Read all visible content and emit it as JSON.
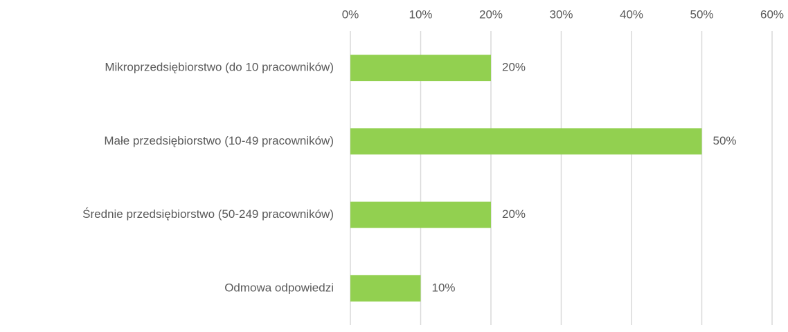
{
  "chart_data": {
    "type": "bar",
    "orientation": "horizontal",
    "categories": [
      "Mikroprzedsiębiorstwo (do 10 pracowników)",
      "Małe przedsiębiorstwo (10-49 pracowników)",
      "Średnie przedsiębiorstwo (50-249 pracowników)",
      "Odmowa odpowiedzi"
    ],
    "values": [
      20,
      50,
      20,
      10
    ],
    "value_labels": [
      "20%",
      "50%",
      "20%",
      "10%"
    ],
    "color": "#92d050",
    "xlim": [
      0,
      60
    ],
    "xticks": [
      {
        "value": 0,
        "label": "0%"
      },
      {
        "value": 10,
        "label": "10%"
      },
      {
        "value": 20,
        "label": "20%"
      },
      {
        "value": 30,
        "label": "30%"
      },
      {
        "value": 40,
        "label": "40%"
      },
      {
        "value": 50,
        "label": "50%"
      },
      {
        "value": 60,
        "label": "60%"
      }
    ],
    "grid": true
  }
}
